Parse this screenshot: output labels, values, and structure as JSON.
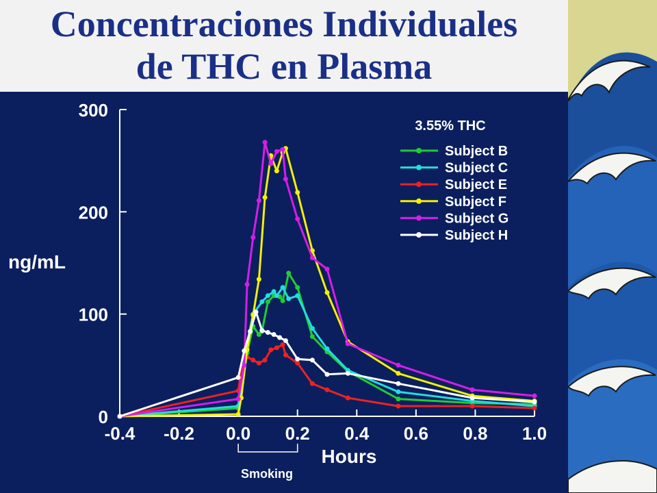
{
  "slide": {
    "title_line1": "Concentraciones Individuales",
    "title_line2": "de THC en Plasma"
  },
  "colors": {
    "background": "#0b1f5e",
    "title_band": "#f2f2f2",
    "title_text": "#1a2f86",
    "wave_panel": "#d8d690"
  },
  "decoration": {
    "right_panel": "ocean-wave-illustration"
  },
  "chart_data": {
    "type": "line",
    "annotation": "3.55% THC",
    "xlabel": "Hours",
    "ylabel": "ng/mL",
    "bracket_label": "Smoking",
    "bracket_range": [
      0.0,
      0.2
    ],
    "xlim": [
      -0.4,
      1.0
    ],
    "ylim": [
      0,
      300
    ],
    "xticks": [
      "-0.4",
      "-0.2",
      "0.0",
      "0.2",
      "0.4",
      "0.6",
      "0.8",
      "1.0"
    ],
    "yticks": [
      "0",
      "100",
      "200",
      "300"
    ],
    "legend_position": "top-right",
    "grid": false,
    "series": [
      {
        "name": "Subject B",
        "color": "#22cc33",
        "points": [
          [
            -0.4,
            0
          ],
          [
            0.0,
            8
          ],
          [
            0.01,
            30
          ],
          [
            0.03,
            62
          ],
          [
            0.05,
            88
          ],
          [
            0.07,
            80
          ],
          [
            0.08,
            83
          ],
          [
            0.1,
            112
          ],
          [
            0.12,
            118
          ],
          [
            0.14,
            117
          ],
          [
            0.15,
            113
          ],
          [
            0.17,
            140
          ],
          [
            0.2,
            126
          ],
          [
            0.25,
            78
          ],
          [
            0.3,
            63
          ],
          [
            0.37,
            44
          ],
          [
            0.54,
            17
          ],
          [
            0.79,
            13
          ],
          [
            1.0,
            12
          ]
        ]
      },
      {
        "name": "Subject C",
        "color": "#22dddd",
        "points": [
          [
            -0.4,
            0
          ],
          [
            0.0,
            10
          ],
          [
            0.01,
            35
          ],
          [
            0.03,
            72
          ],
          [
            0.05,
            100
          ],
          [
            0.08,
            112
          ],
          [
            0.1,
            118
          ],
          [
            0.12,
            122
          ],
          [
            0.13,
            118
          ],
          [
            0.15,
            126
          ],
          [
            0.17,
            115
          ],
          [
            0.2,
            118
          ],
          [
            0.25,
            86
          ],
          [
            0.3,
            66
          ],
          [
            0.37,
            45
          ],
          [
            0.54,
            24
          ],
          [
            0.79,
            15
          ],
          [
            1.0,
            10
          ]
        ]
      },
      {
        "name": "Subject E",
        "color": "#ee2222",
        "points": [
          [
            -0.4,
            0
          ],
          [
            0.0,
            25
          ],
          [
            0.01,
            45
          ],
          [
            0.03,
            58
          ],
          [
            0.05,
            55
          ],
          [
            0.07,
            52
          ],
          [
            0.09,
            55
          ],
          [
            0.11,
            65
          ],
          [
            0.13,
            67
          ],
          [
            0.15,
            70
          ],
          [
            0.16,
            60
          ],
          [
            0.2,
            52
          ],
          [
            0.25,
            32
          ],
          [
            0.3,
            26
          ],
          [
            0.37,
            18
          ],
          [
            0.54,
            10
          ],
          [
            0.79,
            10
          ],
          [
            1.0,
            8
          ]
        ]
      },
      {
        "name": "Subject F",
        "color": "#f5f000",
        "points": [
          [
            -0.4,
            0
          ],
          [
            0.0,
            2
          ],
          [
            0.01,
            18
          ],
          [
            0.03,
            65
          ],
          [
            0.05,
            99
          ],
          [
            0.07,
            134
          ],
          [
            0.09,
            214
          ],
          [
            0.11,
            255
          ],
          [
            0.13,
            240
          ],
          [
            0.15,
            258
          ],
          [
            0.16,
            262
          ],
          [
            0.2,
            219
          ],
          [
            0.25,
            162
          ],
          [
            0.3,
            121
          ],
          [
            0.37,
            73
          ],
          [
            0.54,
            42
          ],
          [
            0.79,
            20
          ],
          [
            1.0,
            15
          ]
        ]
      },
      {
        "name": "Subject G",
        "color": "#d41ee8",
        "points": [
          [
            -0.4,
            0
          ],
          [
            0.0,
            17
          ],
          [
            0.02,
            50
          ],
          [
            0.03,
            129
          ],
          [
            0.05,
            175
          ],
          [
            0.07,
            211
          ],
          [
            0.09,
            268
          ],
          [
            0.11,
            247
          ],
          [
            0.13,
            259
          ],
          [
            0.15,
            261
          ],
          [
            0.16,
            232
          ],
          [
            0.2,
            193
          ],
          [
            0.25,
            155
          ],
          [
            0.3,
            144
          ],
          [
            0.37,
            71
          ],
          [
            0.54,
            50
          ],
          [
            0.79,
            26
          ],
          [
            1.0,
            20
          ]
        ]
      },
      {
        "name": "Subject H",
        "color": "#ffffff",
        "points": [
          [
            -0.4,
            0
          ],
          [
            0.0,
            38
          ],
          [
            0.02,
            64
          ],
          [
            0.04,
            83
          ],
          [
            0.06,
            102
          ],
          [
            0.08,
            84
          ],
          [
            0.1,
            82
          ],
          [
            0.12,
            80
          ],
          [
            0.14,
            77
          ],
          [
            0.16,
            74
          ],
          [
            0.2,
            56
          ],
          [
            0.25,
            55
          ],
          [
            0.3,
            41
          ],
          [
            0.37,
            42
          ],
          [
            0.54,
            32
          ],
          [
            0.79,
            18
          ],
          [
            1.0,
            14
          ]
        ]
      }
    ]
  }
}
